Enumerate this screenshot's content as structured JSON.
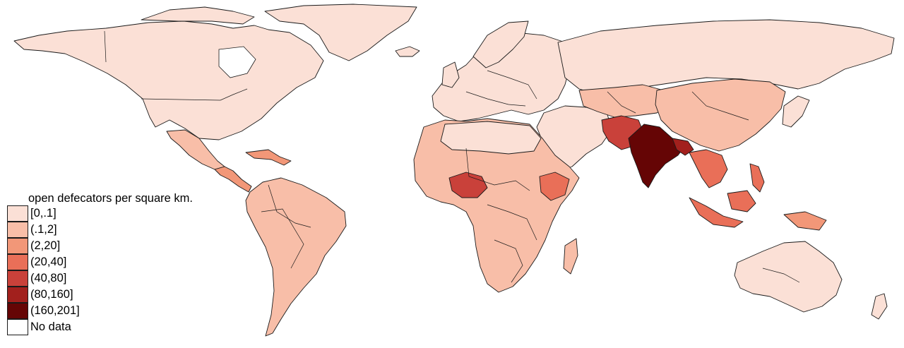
{
  "legend": {
    "title": "open defecators per square km.",
    "items": [
      {
        "label": "[0,.1]",
        "color": "#fbe0d6"
      },
      {
        "label": "(.1,2]",
        "color": "#f8bea8"
      },
      {
        "label": "(2,20]",
        "color": "#f29778"
      },
      {
        "label": "(20,40]",
        "color": "#e96f58"
      },
      {
        "label": "(40,80]",
        "color": "#c9413a"
      },
      {
        "label": "(80,160]",
        "color": "#a2201d"
      },
      {
        "label": "(160,201]",
        "color": "#650505"
      },
      {
        "label": "No data",
        "color": "#ffffff"
      }
    ]
  },
  "colors": {
    "ocean": "#ffffff",
    "border": "#1a1a1a"
  }
}
